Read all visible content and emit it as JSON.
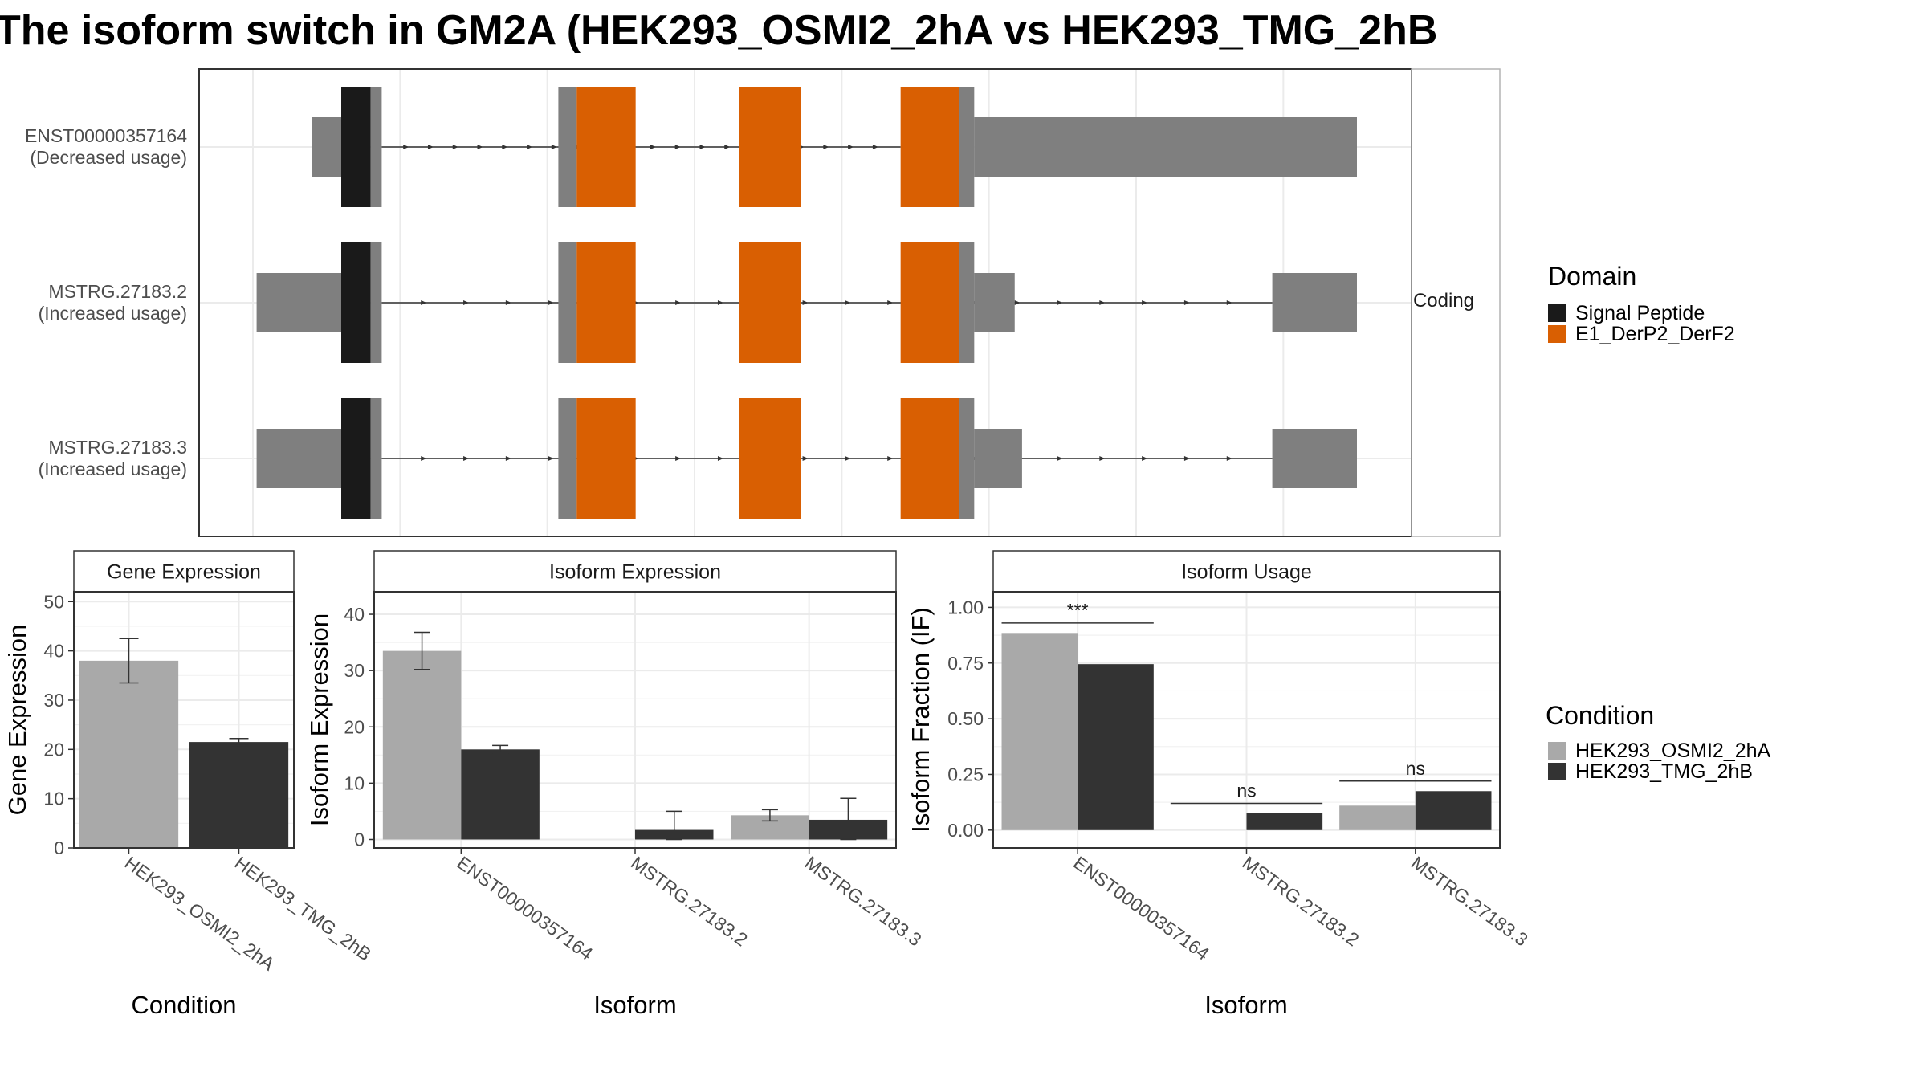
{
  "title": "The isoform switch in GM2A (HEK293_OSMI2_2hA vs HEK293_TMG_2hB",
  "colors": {
    "signal_peptide": "#1a1a1a",
    "domain_e1": "#d95f02",
    "utr": "#7f7f7f",
    "cond_a": "#a9a9a9",
    "cond_b": "#333333"
  },
  "structure_panel": {
    "strip_label": "Coding",
    "transcripts": [
      {
        "id": "ENST00000357164",
        "usage": "(Decreased usage)",
        "exons": [
          {
            "start": 0.08,
            "end": 0.12,
            "type": "utr"
          },
          {
            "start": 0.12,
            "end": 0.16,
            "type": "signal"
          },
          {
            "start": 0.16,
            "end": 0.175,
            "type": "cds"
          },
          {
            "start": 0.415,
            "end": 0.44,
            "type": "cds"
          },
          {
            "start": 0.44,
            "end": 0.52,
            "type": "domain"
          },
          {
            "start": 0.66,
            "end": 0.745,
            "type": "domain"
          },
          {
            "start": 0.88,
            "end": 0.96,
            "type": "domain"
          },
          {
            "start": 0.96,
            "end": 0.98,
            "type": "cds"
          },
          {
            "start": 0.98,
            "end": 1.5,
            "type": "utr"
          }
        ],
        "intron_from": 0.175,
        "intron_to": 0.88
      },
      {
        "id": "MSTRG.27183.2",
        "usage": "(Increased usage)",
        "exons": [
          {
            "start": 0.005,
            "end": 0.12,
            "type": "utr"
          },
          {
            "start": 0.12,
            "end": 0.16,
            "type": "signal"
          },
          {
            "start": 0.16,
            "end": 0.175,
            "type": "cds"
          },
          {
            "start": 0.415,
            "end": 0.44,
            "type": "cds"
          },
          {
            "start": 0.44,
            "end": 0.52,
            "type": "domain"
          },
          {
            "start": 0.66,
            "end": 0.745,
            "type": "domain"
          },
          {
            "start": 0.88,
            "end": 0.96,
            "type": "domain"
          },
          {
            "start": 0.96,
            "end": 0.98,
            "type": "cds"
          },
          {
            "start": 0.98,
            "end": 1.035,
            "type": "utr"
          },
          {
            "start": 1.385,
            "end": 1.5,
            "type": "utr"
          }
        ],
        "intron_from": 0.175,
        "intron_to": 1.385
      },
      {
        "id": "MSTRG.27183.3",
        "usage": "(Increased usage)",
        "exons": [
          {
            "start": 0.005,
            "end": 0.12,
            "type": "utr"
          },
          {
            "start": 0.12,
            "end": 0.16,
            "type": "signal"
          },
          {
            "start": 0.16,
            "end": 0.175,
            "type": "cds"
          },
          {
            "start": 0.415,
            "end": 0.44,
            "type": "cds"
          },
          {
            "start": 0.44,
            "end": 0.52,
            "type": "domain"
          },
          {
            "start": 0.66,
            "end": 0.745,
            "type": "domain"
          },
          {
            "start": 0.88,
            "end": 0.96,
            "type": "domain"
          },
          {
            "start": 0.96,
            "end": 0.98,
            "type": "cds"
          },
          {
            "start": 0.98,
            "end": 1.045,
            "type": "utr"
          },
          {
            "start": 1.385,
            "end": 1.5,
            "type": "utr"
          }
        ],
        "intron_from": 0.175,
        "intron_to": 1.385
      }
    ]
  },
  "legend_domain": {
    "title": "Domain",
    "items": [
      {
        "label": "Signal Peptide",
        "color": "#1a1a1a"
      },
      {
        "label": "E1_DerP2_DerF2",
        "color": "#d95f02"
      }
    ]
  },
  "legend_condition": {
    "title": "Condition",
    "items": [
      {
        "label": "HEK293_OSMI2_2hA",
        "color": "#a9a9a9"
      },
      {
        "label": "HEK293_TMG_2hB",
        "color": "#333333"
      }
    ]
  },
  "chart_data": [
    {
      "type": "bar",
      "title": "Gene Expression",
      "xlabel": "Condition",
      "ylabel": "Gene Expression",
      "ylim": [
        0,
        52
      ],
      "yticks": [
        0,
        10,
        20,
        30,
        40,
        50
      ],
      "ytick_labels": [
        "0",
        "10",
        "20",
        "30",
        "40",
        "50"
      ],
      "categories": [
        "HEK293_OSMI2_2hA",
        "HEK293_TMG_2hB"
      ],
      "bars": [
        {
          "category": 0,
          "condition": 0,
          "value": 38.0,
          "err_low": 33.5,
          "err_high": 42.5
        },
        {
          "category": 1,
          "condition": 1,
          "value": 21.5,
          "err_low": 20.8,
          "err_high": 22.2
        }
      ]
    },
    {
      "type": "bar",
      "title": "Isoform Expression",
      "xlabel": "Isoform",
      "ylabel": "Isoform Expression",
      "ylim": [
        -1.5,
        44
      ],
      "yticks": [
        0,
        10,
        20,
        30,
        40
      ],
      "ytick_labels": [
        "0",
        "10",
        "20",
        "30",
        "40"
      ],
      "categories": [
        "ENST00000357164",
        "MSTRG.27183.2",
        "MSTRG.27183.3"
      ],
      "series": [
        {
          "name": "HEK293_OSMI2_2hA",
          "values": [
            33.5,
            0.0,
            4.3
          ],
          "err_low": [
            30.2,
            0.0,
            3.3
          ],
          "err_high": [
            36.8,
            0.0,
            5.3
          ]
        },
        {
          "name": "HEK293_TMG_2hB",
          "values": [
            16.0,
            1.7,
            3.5
          ],
          "err_low": [
            15.3,
            0.0,
            0.0
          ],
          "err_high": [
            16.7,
            5.0,
            7.3
          ]
        }
      ]
    },
    {
      "type": "bar",
      "title": "Isoform Usage",
      "xlabel": "Isoform",
      "ylabel": "Isoform Fraction (IF)",
      "ylim": [
        -0.08,
        1.07
      ],
      "yticks": [
        0,
        0.25,
        0.5,
        0.75,
        1.0
      ],
      "ytick_labels": [
        "0.00",
        "0.25",
        "0.50",
        "0.75",
        "1.00"
      ],
      "categories": [
        "ENST00000357164",
        "MSTRG.27183.2",
        "MSTRG.27183.3"
      ],
      "series": [
        {
          "name": "HEK293_OSMI2_2hA",
          "values": [
            0.885,
            0.0,
            0.11
          ]
        },
        {
          "name": "HEK293_TMG_2hB",
          "values": [
            0.745,
            0.075,
            0.175
          ]
        }
      ],
      "significance": [
        {
          "category": 0,
          "label": "***",
          "y": 0.93
        },
        {
          "category": 1,
          "label": "ns",
          "y": 0.12
        },
        {
          "category": 2,
          "label": "ns",
          "y": 0.22
        }
      ]
    }
  ]
}
